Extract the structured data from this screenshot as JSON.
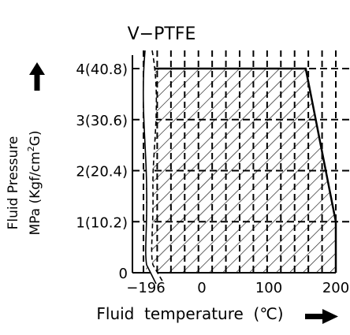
{
  "chart_data": {
    "type": "area",
    "title": "V−PTFE",
    "xlabel": "Fluid  temperature  (℃)",
    "ylabel_line1": "Fluid  Pressure",
    "ylabel_line2": "MPa (Kgf/cm",
    "ylabel_sup": "2",
    "ylabel_tail": "G)",
    "x_ticks": [
      {
        "value": -196,
        "label": "−196"
      },
      {
        "value": 0,
        "label": "0"
      },
      {
        "value": 100,
        "label": "100"
      },
      {
        "value": 200,
        "label": "200"
      }
    ],
    "y_ticks": [
      {
        "value": 0,
        "label": "0"
      },
      {
        "value": 1,
        "label": "1(10.2)"
      },
      {
        "value": 2,
        "label": "2(20.4)"
      },
      {
        "value": 3,
        "label": "3(30.6)"
      },
      {
        "value": 4,
        "label": "4(40.8)"
      }
    ],
    "xlim": [
      -196,
      200
    ],
    "ylim": [
      0,
      4
    ],
    "boundary_x": [
      -196,
      155,
      200,
      200,
      -196
    ],
    "boundary_y": [
      4,
      4,
      1,
      0,
      0
    ],
    "x_scale": "non-linear (break between -196 and 0)",
    "grid": "dashed",
    "fill": "hatched",
    "arrows": [
      "up",
      "right"
    ]
  }
}
